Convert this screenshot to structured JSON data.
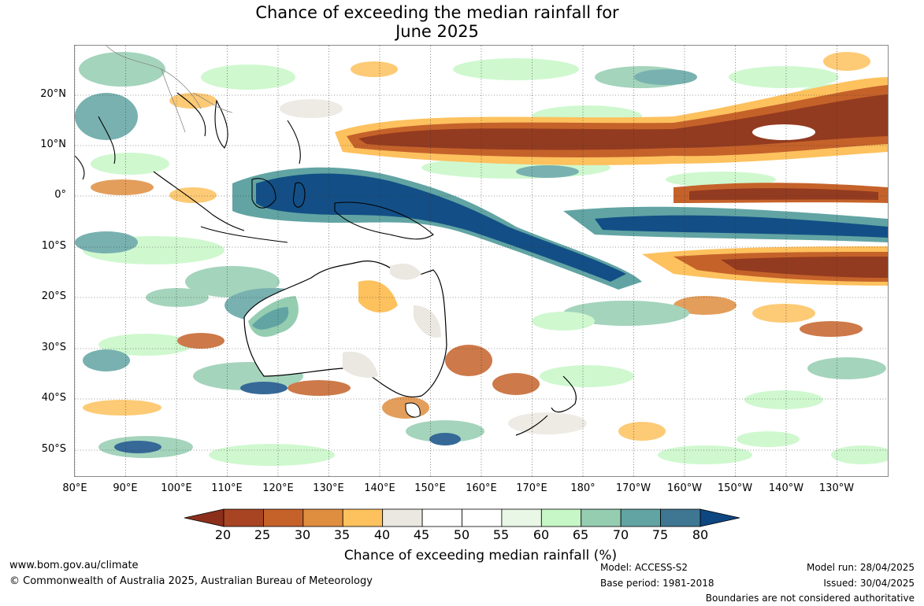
{
  "title_line1": "Chance of exceeding the median rainfall for",
  "title_line2": "June 2025",
  "lat_labels": [
    "20°N",
    "10°N",
    "0°",
    "10°S",
    "20°S",
    "30°S",
    "40°S",
    "50°S"
  ],
  "lon_labels": [
    "80°E",
    "90°E",
    "100°E",
    "110°E",
    "120°E",
    "130°E",
    "140°E",
    "150°E",
    "160°E",
    "170°E",
    "180°",
    "170°W",
    "160°W",
    "150°W",
    "140°W",
    "130°W"
  ],
  "colorbar": {
    "ticks": [
      "20",
      "25",
      "30",
      "35",
      "40",
      "45",
      "50",
      "55",
      "60",
      "65",
      "70",
      "75",
      "80"
    ],
    "under_color": "#8b2f1c",
    "over_color": "#0d4680",
    "bins": [
      "#a84422",
      "#c5622a",
      "#df8e3f",
      "#fdc15e",
      "#ebe7e1",
      "#ffffff",
      "#ffffff",
      "#e9f7e6",
      "#c7f7c7",
      "#95cdb1",
      "#61a4a3",
      "#3f7792"
    ],
    "title": "Chance of exceeding median rainfall (%)"
  },
  "colors": {
    "dry_strong": "#933b20",
    "dry_mid": "#c5622a",
    "dry_light": "#fdc15e",
    "neutral": "#ebe7e1",
    "wet_light": "#c7f7c7",
    "wet_mid": "#61a4a3",
    "wet_strong": "#134f86",
    "coast": "#000000",
    "border": "#888888"
  },
  "footer": {
    "website": "www.bom.gov.au/climate",
    "copyright": "© Commonwealth of Australia 2025, Australian Bureau of Meteorology",
    "model": "Model: ACCESS-S2",
    "base_period": "Base period: 1981-2018",
    "model_run": "Model run: 28/04/2025",
    "issued": "Issued: 30/04/2025",
    "disclaimer": "Boundaries are not considered authoritative"
  }
}
